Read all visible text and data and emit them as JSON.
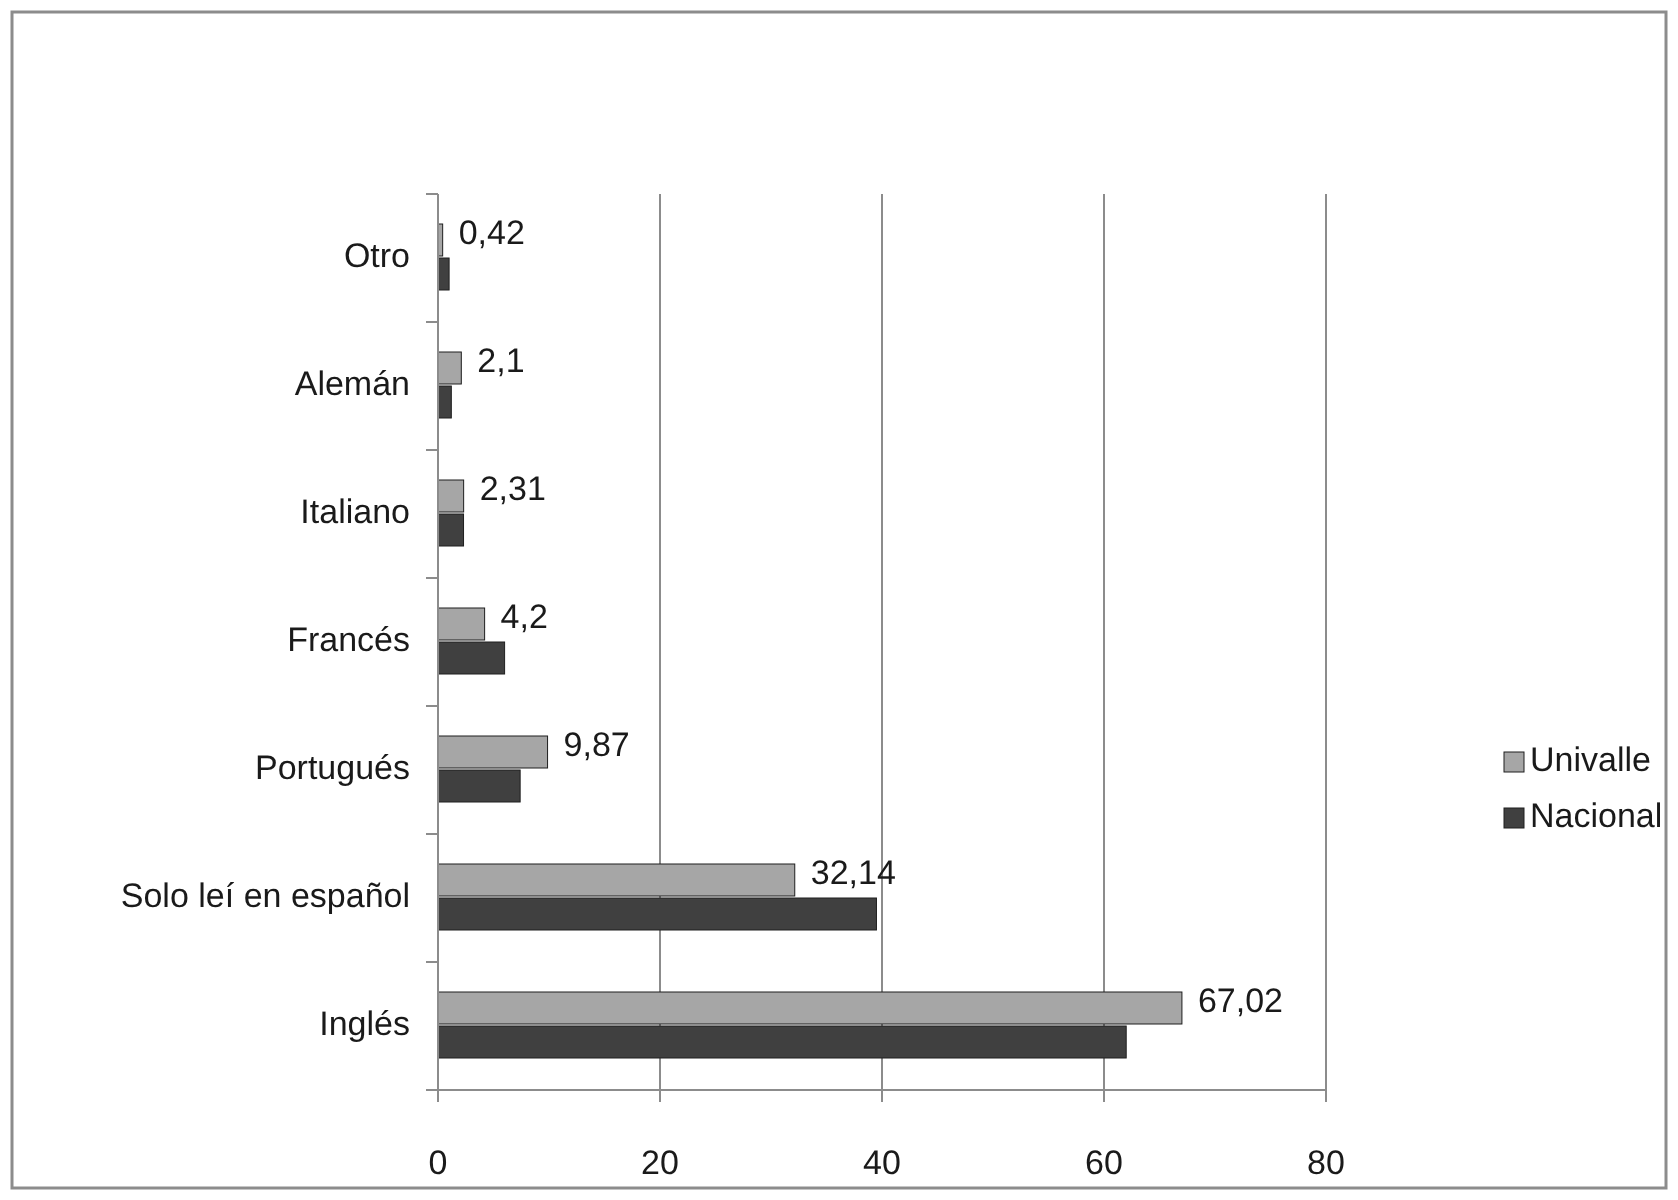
{
  "chart_data": {
    "type": "bar",
    "orientation": "horizontal",
    "categories": [
      "Otro",
      "Alemán",
      "Italiano",
      "Francés",
      "Portugués",
      "Solo leí en español",
      "Inglés"
    ],
    "series": [
      {
        "name": "Univalle",
        "color": "#a6a6a6",
        "values": [
          0.42,
          2.1,
          2.31,
          4.2,
          9.87,
          32.14,
          67.02
        ],
        "value_labels": [
          "0,42",
          "2,1",
          "2,31",
          "4,2",
          "9,87",
          "32,14",
          "67,02"
        ]
      },
      {
        "name": "Nacional",
        "color": "#404040",
        "values": [
          1,
          1.2,
          2.3,
          6,
          7.4,
          39.5,
          62
        ]
      }
    ],
    "xlim": [
      0,
      80
    ],
    "xticks": [
      0,
      20,
      40,
      60,
      80
    ],
    "grid": "x",
    "legend": "right"
  }
}
